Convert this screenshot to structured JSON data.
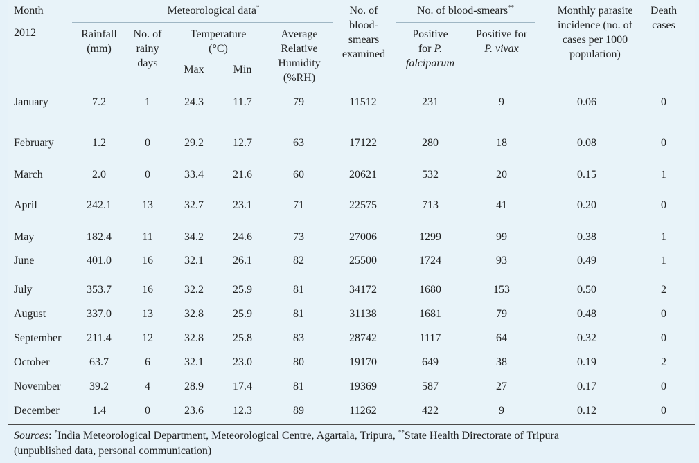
{
  "header": {
    "month": "Month",
    "year": "2012",
    "met_group": "Meteorological data",
    "met_mark": "*",
    "rainfall": [
      "Rainfall",
      "(mm)"
    ],
    "rainy_days": [
      "No. of",
      "rainy",
      "days"
    ],
    "temperature": [
      "Temperature",
      "(°C)"
    ],
    "tmax": "Max",
    "tmin": "Min",
    "humidity": [
      "Average",
      "Relative",
      "Humidity",
      "(%RH)"
    ],
    "examined": [
      "No. of",
      "blood-",
      "smears",
      "examined"
    ],
    "smear_group": "No. of blood-smears",
    "smear_mark": "**",
    "pf": [
      "Positive",
      "for ",
      "P.",
      "falciparum"
    ],
    "pv": [
      "Positive for",
      "P. vivax"
    ],
    "incidence": [
      "Monthly parasite",
      "incidence (no. of",
      "cases per 1000",
      "population)"
    ],
    "deaths": [
      "Death",
      "cases"
    ]
  },
  "rows": [
    {
      "month": "January",
      "rain": "7.2",
      "days": "1",
      "max": "24.3",
      "min": "11.7",
      "rh": "79",
      "exam": "11512",
      "pf": "231",
      "pv": "9",
      "inc": "0.06",
      "death": "0"
    },
    {
      "month": "February",
      "rain": "1.2",
      "days": "0",
      "max": "29.2",
      "min": "12.7",
      "rh": "63",
      "exam": "17122",
      "pf": "280",
      "pv": "18",
      "inc": "0.08",
      "death": "0"
    },
    {
      "month": "March",
      "rain": "2.0",
      "days": "0",
      "max": "33.4",
      "min": "21.6",
      "rh": "60",
      "exam": "20621",
      "pf": "532",
      "pv": "20",
      "inc": "0.15",
      "death": "1"
    },
    {
      "month": "April",
      "rain": "242.1",
      "days": "13",
      "max": "32.7",
      "min": "23.1",
      "rh": "71",
      "exam": "22575",
      "pf": "713",
      "pv": "41",
      "inc": "0.20",
      "death": "0"
    },
    {
      "month": "May",
      "rain": "182.4",
      "days": "11",
      "max": "34.2",
      "min": "24.6",
      "rh": "73",
      "exam": "27006",
      "pf": "1299",
      "pv": "99",
      "inc": "0.38",
      "death": "1"
    },
    {
      "month": "June",
      "rain": "401.0",
      "days": "16",
      "max": "32.1",
      "min": "26.1",
      "rh": "82",
      "exam": "25500",
      "pf": "1724",
      "pv": "93",
      "inc": "0.49",
      "death": "1"
    },
    {
      "month": "July",
      "rain": "353.7",
      "days": "16",
      "max": "32.2",
      "min": "25.9",
      "rh": "81",
      "exam": "34172",
      "pf": "1680",
      "pv": "153",
      "inc": "0.50",
      "death": "2"
    },
    {
      "month": "August",
      "rain": "337.0",
      "days": "13",
      "max": "32.8",
      "min": "25.9",
      "rh": "81",
      "exam": "31138",
      "pf": "1681",
      "pv": "79",
      "inc": "0.48",
      "death": "0"
    },
    {
      "month": "September",
      "rain": "211.4",
      "days": "12",
      "max": "32.8",
      "min": "25.8",
      "rh": "83",
      "exam": "28742",
      "pf": "1117",
      "pv": "64",
      "inc": "0.32",
      "death": "0"
    },
    {
      "month": "October",
      "rain": "63.7",
      "days": "6",
      "max": "32.1",
      "min": "23.0",
      "rh": "80",
      "exam": "19170",
      "pf": "649",
      "pv": "38",
      "inc": "0.19",
      "death": "2"
    },
    {
      "month": "November",
      "rain": "39.2",
      "days": "4",
      "max": "28.9",
      "min": "17.4",
      "rh": "81",
      "exam": "19369",
      "pf": "587",
      "pv": "27",
      "inc": "0.17",
      "death": "0"
    },
    {
      "month": "December",
      "rain": "1.4",
      "days": "0",
      "max": "23.6",
      "min": "12.3",
      "rh": "89",
      "exam": "11262",
      "pf": "422",
      "pv": "9",
      "inc": "0.12",
      "death": "0"
    }
  ],
  "footer": {
    "label": "Sources",
    "colon": ": ",
    "mark1": "*",
    "text1": "India Meteorological Department, Meteorological Centre, Agartala, Tripura, ",
    "mark2": "**",
    "text2": "State Health Directorate of Tripura",
    "line2": "(unpublished data, personal communication)"
  }
}
